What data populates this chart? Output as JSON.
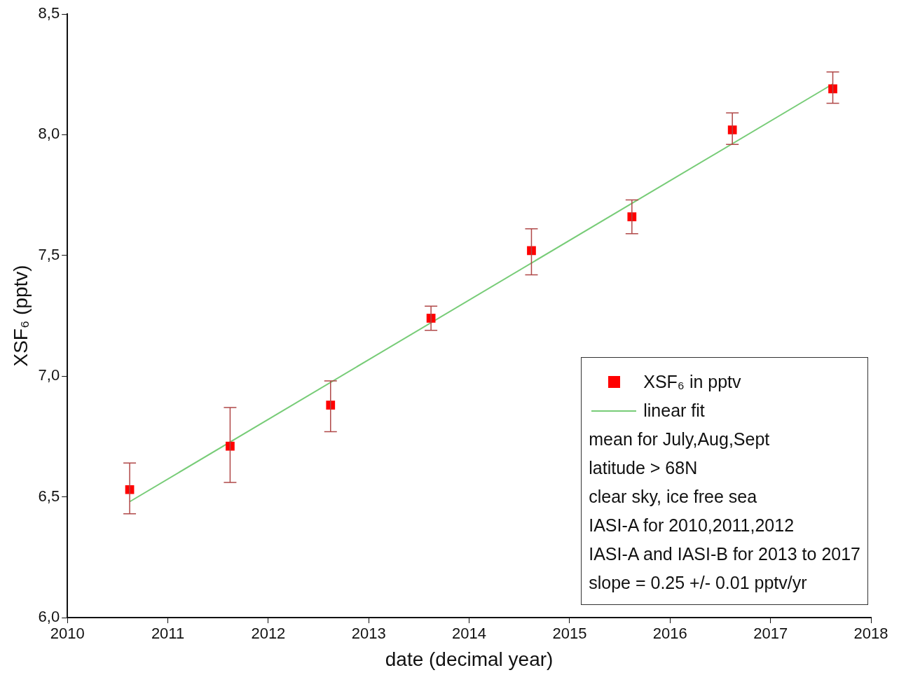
{
  "chart_data": {
    "type": "scatter",
    "xlabel": "date (decimal year)",
    "ylabel": "XSF₆ (pptv)",
    "xlim": [
      2010,
      2018
    ],
    "xticks": [
      2010,
      2011,
      2012,
      2013,
      2014,
      2015,
      2016,
      2017,
      2018
    ],
    "ylim": [
      6.0,
      8.5
    ],
    "yticks": [
      {
        "value": 6.0,
        "label": "6,0"
      },
      {
        "value": 6.5,
        "label": "6,5"
      },
      {
        "value": 7.0,
        "label": "7,0"
      },
      {
        "value": 7.5,
        "label": "7,5"
      },
      {
        "value": 8.0,
        "label": "8,0"
      },
      {
        "value": 8.5,
        "label": "8,5"
      }
    ],
    "grid": false,
    "legend": "bottom right",
    "marker": "square",
    "series": [
      {
        "name": "XSF₆ in pptv",
        "color": "#ff0000",
        "x": [
          2010.62,
          2011.62,
          2012.62,
          2013.62,
          2014.62,
          2015.62,
          2016.62,
          2017.62
        ],
        "values": [
          6.53,
          6.71,
          6.88,
          7.24,
          7.52,
          7.66,
          8.02,
          8.19
        ],
        "errors": [
          [
            6.43,
            6.64
          ],
          [
            6.56,
            6.87
          ],
          [
            6.77,
            6.98
          ],
          [
            7.19,
            7.29
          ],
          [
            7.42,
            7.61
          ],
          [
            7.59,
            7.73
          ],
          [
            7.96,
            8.09
          ],
          [
            8.13,
            8.26
          ]
        ]
      },
      {
        "name": "linear fit",
        "type": "line",
        "marker": "none",
        "color": "#77cc77",
        "x": [
          2010.62,
          2017.62
        ],
        "values": [
          6.48,
          8.21
        ]
      }
    ],
    "annotations": [
      "mean for July,Aug,Sept",
      "latitude > 68N",
      "clear sky, ice free sea",
      "IASI-A for 2010,2011,2012",
      "IASI-A and IASI-B for 2013 to 2017",
      "slope = 0.25 +/- 0.01 pptv/yr"
    ]
  }
}
